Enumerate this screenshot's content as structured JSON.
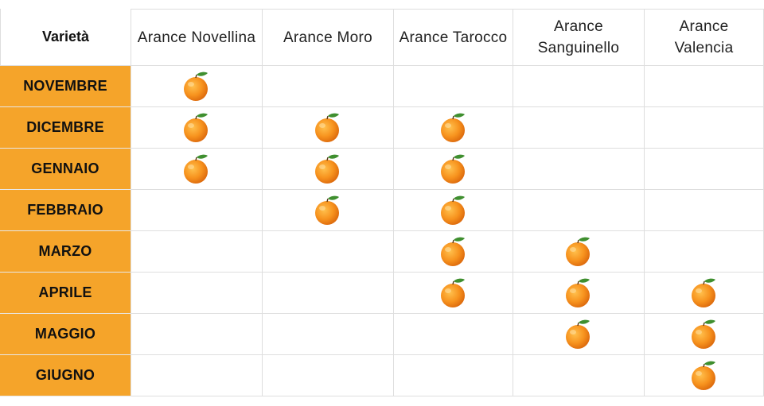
{
  "table": {
    "corner_label": "Varietà",
    "columns": [
      "Arance Novellina",
      "Arance Moro",
      "Arance Tarocco",
      "Arance Sanguinello",
      "Arance Valencia"
    ],
    "rows": [
      {
        "month": "NOVEMBRE",
        "available": [
          true,
          false,
          false,
          false,
          false
        ]
      },
      {
        "month": "DICEMBRE",
        "available": [
          true,
          true,
          true,
          false,
          false
        ]
      },
      {
        "month": "GENNAIO",
        "available": [
          true,
          true,
          true,
          false,
          false
        ]
      },
      {
        "month": "FEBBRAIO",
        "available": [
          false,
          true,
          true,
          false,
          false
        ]
      },
      {
        "month": "MARZO",
        "available": [
          false,
          false,
          true,
          true,
          false
        ]
      },
      {
        "month": "APRILE",
        "available": [
          false,
          false,
          true,
          true,
          true
        ]
      },
      {
        "month": "MAGGIO",
        "available": [
          false,
          false,
          false,
          true,
          true
        ]
      },
      {
        "month": "GIUGNO",
        "available": [
          false,
          false,
          false,
          false,
          true
        ]
      }
    ],
    "marker_icon": "orange-fruit-icon"
  },
  "colors": {
    "month_background": "#f5a42a",
    "grid_line": "#dedede",
    "orange_fruit": "#f7931e",
    "leaf": "#3f8f2f"
  }
}
